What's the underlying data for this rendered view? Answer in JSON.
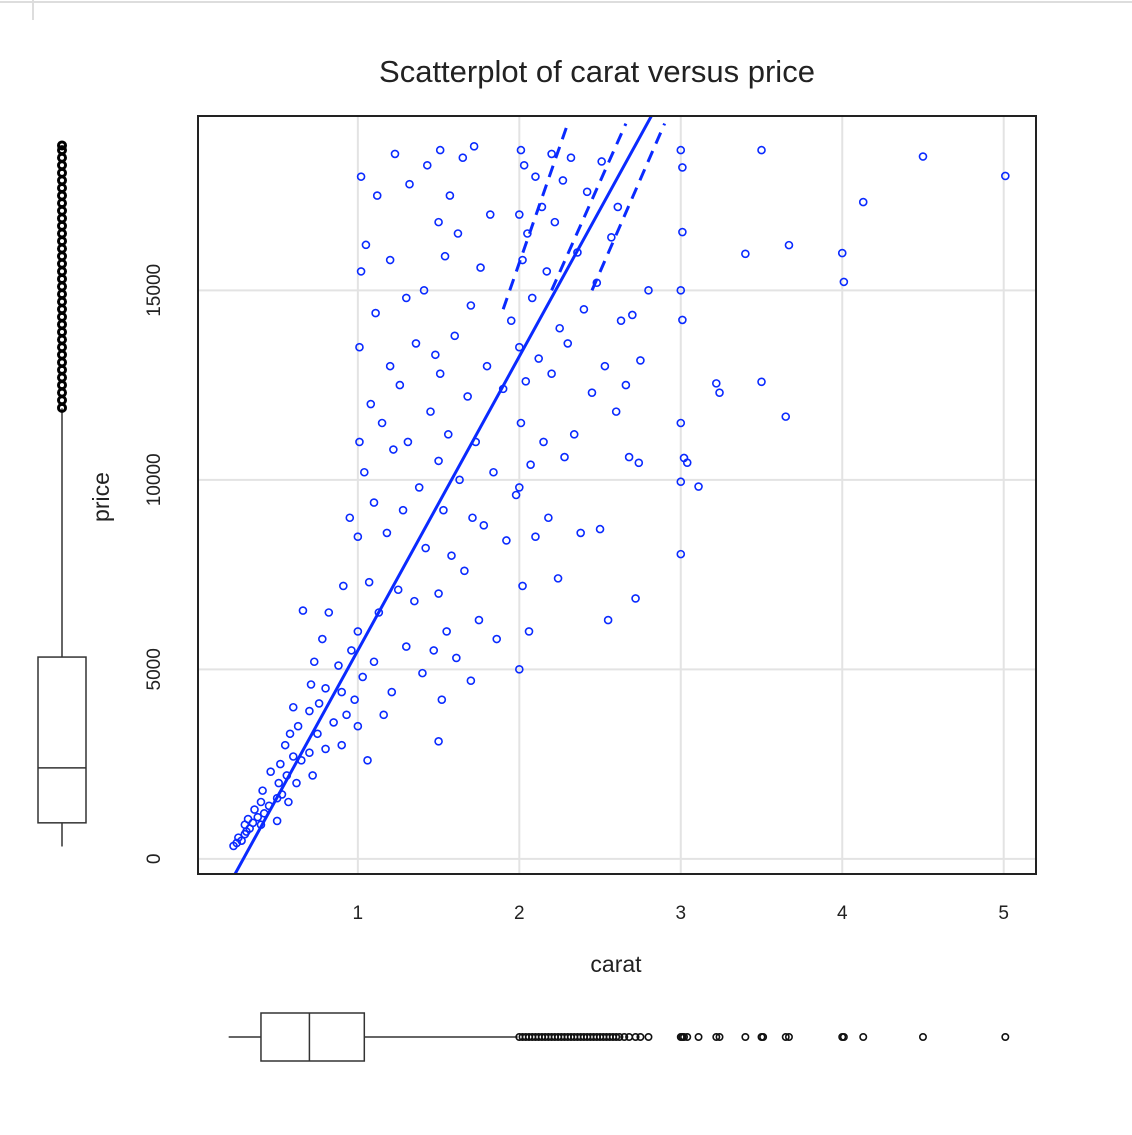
{
  "chart_data": {
    "type": "scatter",
    "title": "Scatterplot of carat versus price",
    "x_label": "carat",
    "y_label": "price",
    "color": "#0a2aff",
    "grid": true,
    "xlim": [
      0.01,
      5.2
    ],
    "ylim": [
      -400,
      19600
    ],
    "xticks": [
      1,
      2,
      3,
      4,
      5
    ],
    "yticks": [
      0,
      5000,
      10000,
      15000
    ],
    "x": [
      0.23,
      0.25,
      0.26,
      0.28,
      0.3,
      0.3,
      0.31,
      0.32,
      0.33,
      0.35,
      0.36,
      0.38,
      0.4,
      0.4,
      0.41,
      0.42,
      0.45,
      0.46,
      0.5,
      0.5,
      0.51,
      0.52,
      0.53,
      0.55,
      0.56,
      0.57,
      0.58,
      0.6,
      0.6,
      0.62,
      0.63,
      0.65,
      0.66,
      0.7,
      0.7,
      0.71,
      0.72,
      0.73,
      0.75,
      0.76,
      0.78,
      0.8,
      0.8,
      0.82,
      0.85,
      0.88,
      0.9,
      0.9,
      0.91,
      0.93,
      0.95,
      0.96,
      0.98,
      1.0,
      1.0,
      1.0,
      1.01,
      1.01,
      1.02,
      1.02,
      1.03,
      1.04,
      1.05,
      1.06,
      1.07,
      1.08,
      1.1,
      1.1,
      1.11,
      1.12,
      1.13,
      1.15,
      1.16,
      1.18,
      1.2,
      1.2,
      1.21,
      1.22,
      1.23,
      1.25,
      1.26,
      1.28,
      1.3,
      1.3,
      1.31,
      1.32,
      1.35,
      1.36,
      1.38,
      1.4,
      1.41,
      1.42,
      1.43,
      1.45,
      1.47,
      1.48,
      1.5,
      1.5,
      1.5,
      1.5,
      1.51,
      1.51,
      1.52,
      1.53,
      1.54,
      1.55,
      1.56,
      1.57,
      1.58,
      1.6,
      1.61,
      1.62,
      1.63,
      1.65,
      1.66,
      1.68,
      1.7,
      1.7,
      1.71,
      1.72,
      1.73,
      1.75,
      1.76,
      1.78,
      1.8,
      1.82,
      1.84,
      1.86,
      1.9,
      1.92,
      1.95,
      1.98,
      2.0,
      2.0,
      2.0,
      2.0,
      2.01,
      2.01,
      2.02,
      2.02,
      2.03,
      2.04,
      2.05,
      2.06,
      2.07,
      2.08,
      2.1,
      2.1,
      2.12,
      2.14,
      2.15,
      2.17,
      2.18,
      2.2,
      2.2,
      2.22,
      2.24,
      2.25,
      2.27,
      2.28,
      2.3,
      2.32,
      2.34,
      2.36,
      2.38,
      2.4,
      2.42,
      2.45,
      2.48,
      2.5,
      2.51,
      2.53,
      2.55,
      2.57,
      2.6,
      2.61,
      2.63,
      2.66,
      2.68,
      2.7,
      2.72,
      2.74,
      2.75,
      2.8,
      3.0,
      3.0,
      3.0,
      3.0,
      3.01,
      3.01,
      3.01,
      3.02,
      3.04,
      3.11,
      3.22,
      3.24,
      3.4,
      3.5,
      3.5,
      3.65,
      3.67,
      4.0,
      4.01,
      4.13,
      4.5,
      5.01,
      3.0
    ],
    "values": [
      340,
      420,
      560,
      480,
      650,
      900,
      720,
      1050,
      800,
      950,
      1300,
      1100,
      900,
      1500,
      1800,
      1200,
      1400,
      2300,
      1600,
      1000,
      2000,
      2500,
      1700,
      3000,
      2200,
      1500,
      3300,
      2700,
      4000,
      2000,
      3500,
      2600,
      6550,
      2800,
      3900,
      4600,
      2200,
      5200,
      3300,
      4100,
      5800,
      2900,
      4500,
      6500,
      3600,
      5100,
      3000,
      4400,
      7200,
      3800,
      9000,
      5500,
      4200,
      3500,
      6000,
      8500,
      11000,
      13500,
      15500,
      18000,
      4800,
      10200,
      16200,
      2600,
      7300,
      12000,
      5200,
      9400,
      14400,
      17500,
      6500,
      11500,
      3800,
      8600,
      13000,
      15800,
      4400,
      10800,
      18600,
      7100,
      12500,
      9200,
      5600,
      14800,
      11000,
      17800,
      6800,
      13600,
      9800,
      4900,
      15000,
      8200,
      18300,
      11800,
      5500,
      13300,
      3100,
      7000,
      10500,
      16800,
      18700,
      12800,
      4200,
      9200,
      15900,
      6000,
      11200,
      17500,
      8000,
      13800,
      5300,
      16500,
      10000,
      18500,
      7600,
      12200,
      14600,
      4700,
      9000,
      18800,
      11000,
      6300,
      15600,
      8800,
      13000,
      17000,
      10200,
      5800,
      12400,
      8400,
      14200,
      9600,
      5000,
      9800,
      13500,
      17000,
      18700,
      11500,
      15800,
      7200,
      18300,
      12600,
      16500,
      6000,
      10400,
      14800,
      18000,
      8500,
      13200,
      17200,
      11000,
      15500,
      9000,
      18600,
      12800,
      16800,
      7400,
      14000,
      17900,
      10600,
      13600,
      18500,
      11200,
      16000,
      8600,
      14500,
      17600,
      12300,
      15200,
      8700,
      18400,
      13000,
      6300,
      16400,
      11800,
      17200,
      14200,
      12500,
      10600,
      14350,
      6870,
      10450,
      13150,
      15000,
      18700,
      15000,
      11500,
      8040,
      18242,
      14220,
      16538,
      10577,
      10453,
      9823,
      12545,
      12300,
      15964,
      18700,
      12587,
      11668,
      16193,
      15984,
      15223,
      17329,
      18531,
      18018,
      9950
    ],
    "fit": {
      "intercept": -2256,
      "slope": 7756
    },
    "smooth_lines": [
      {
        "x": [
          1.9,
          2.3
        ],
        "values": [
          14500,
          19400
        ]
      },
      {
        "x": [
          2.2,
          2.66
        ],
        "values": [
          15000,
          19400
        ]
      },
      {
        "x": [
          2.45,
          2.9
        ],
        "values": [
          15000,
          19400
        ]
      }
    ],
    "boxplots": {
      "x": {
        "min": 0.2,
        "q1": 0.4,
        "median": 0.7,
        "q3": 1.04,
        "max": 1.99,
        "outliers": [
          2.0,
          2.02,
          2.04,
          2.06,
          2.08,
          2.1,
          2.12,
          2.14,
          2.16,
          2.18,
          2.2,
          2.22,
          2.24,
          2.26,
          2.28,
          2.3,
          2.32,
          2.34,
          2.36,
          2.38,
          2.4,
          2.42,
          2.44,
          2.46,
          2.48,
          2.5,
          2.52,
          2.54,
          2.56,
          2.58,
          2.6,
          2.62,
          2.65,
          2.68,
          2.72,
          2.75,
          2.8,
          3.0,
          3.01,
          3.02,
          3.04,
          3.11,
          3.22,
          3.24,
          3.4,
          3.5,
          3.51,
          3.65,
          3.67,
          4.0,
          4.01,
          4.13,
          4.5,
          5.01
        ]
      },
      "y": {
        "min": 326,
        "q1": 950,
        "median": 2401,
        "q3": 5324,
        "max": 11886,
        "outliers": [
          11900,
          12100,
          12300,
          12500,
          12700,
          12900,
          13100,
          13300,
          13500,
          13700,
          13900,
          14100,
          14300,
          14500,
          14700,
          14900,
          15100,
          15300,
          15500,
          15700,
          15900,
          16100,
          16300,
          16500,
          16700,
          16900,
          17100,
          17300,
          17500,
          17700,
          17900,
          18100,
          18300,
          18500,
          18700,
          18823
        ]
      }
    }
  }
}
